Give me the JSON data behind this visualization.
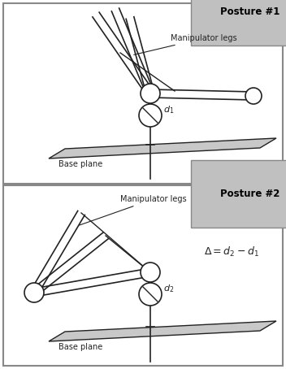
{
  "fig_width": 3.52,
  "fig_height": 4.54,
  "dpi": 100,
  "bg_color": "#ffffff",
  "plane_color": "#c8c8c8",
  "plane_edge_color": "#222222",
  "line_color": "#222222",
  "posture1_label": "Posture #1",
  "posture2_label": "Posture #2",
  "manip_legs_label": "Manipulator legs",
  "base_plane_label": "Base plane",
  "d1_label": "d_1",
  "d2_label": "d_2",
  "border_color": "#888888",
  "label_box_color": "#c0c0c0"
}
